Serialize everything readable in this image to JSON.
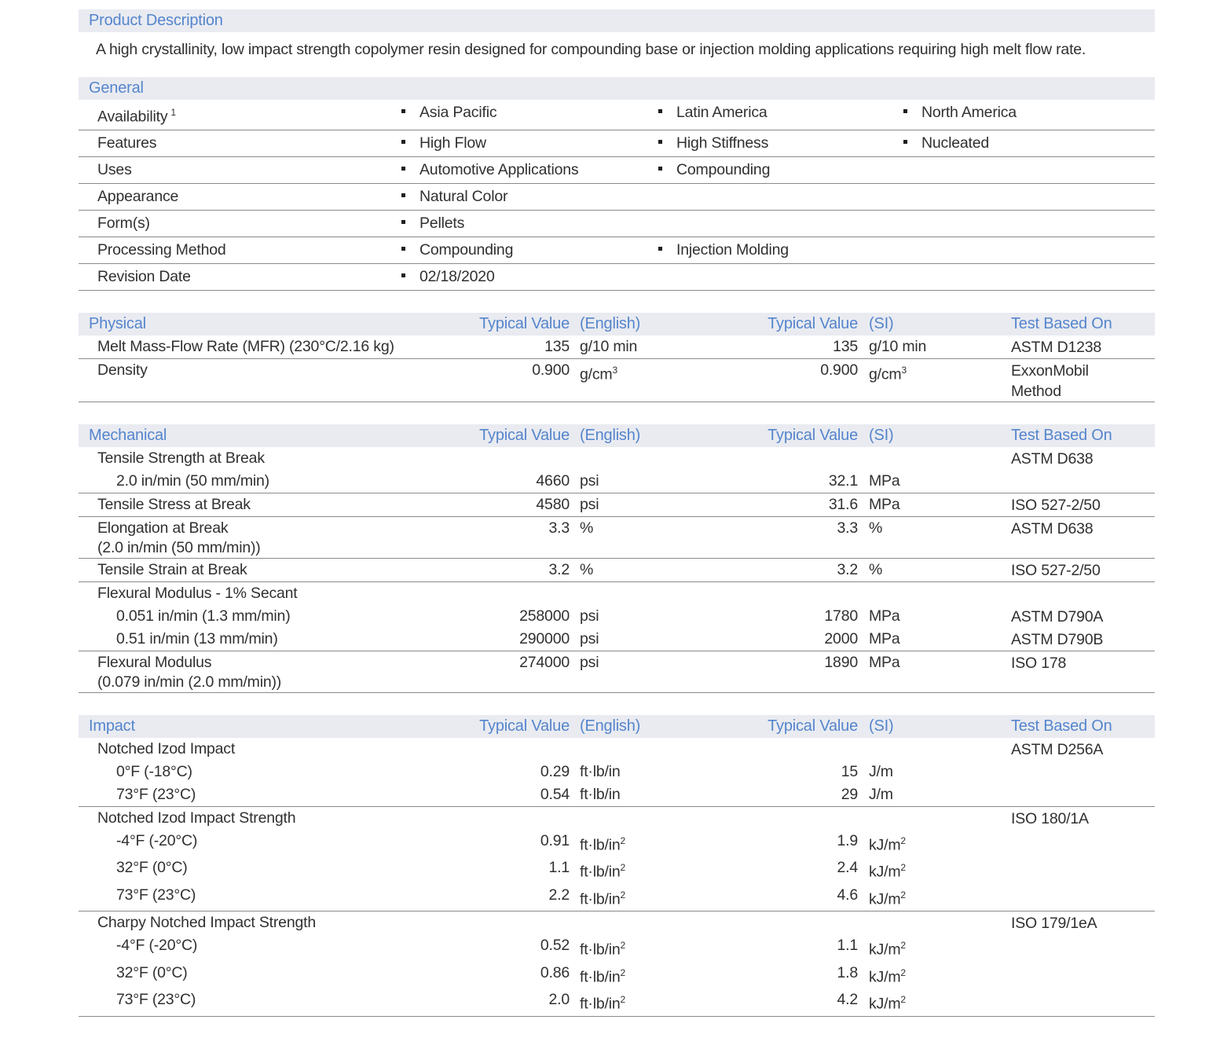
{
  "page": {
    "background": "#ffffff",
    "section_header_bg": "#e9ebf1",
    "section_header_text": "#5585cc",
    "body_text": "#303030",
    "divider_color": "#8a8a8a",
    "bullet_icon": "square-bullet"
  },
  "product_description": {
    "title": "Product Description",
    "body": "A high crystallinity, low impact strength copolymer resin designed for compounding base or injection molding applications requiring high melt flow rate."
  },
  "general": {
    "title": "General",
    "rows": [
      {
        "label": "Availability",
        "sup": "1",
        "values": [
          "Asia Pacific",
          "Latin America",
          "North America"
        ]
      },
      {
        "label": "Features",
        "values": [
          "High Flow",
          "High Stiffness",
          "Nucleated"
        ]
      },
      {
        "label": "Uses",
        "values": [
          "Automotive Applications",
          "Compounding"
        ]
      },
      {
        "label": "Appearance",
        "values": [
          "Natural Color"
        ]
      },
      {
        "label": "Form(s)",
        "values": [
          "Pellets"
        ]
      },
      {
        "label": "Processing Method",
        "values": [
          "Compounding",
          "Injection Molding"
        ]
      },
      {
        "label": "Revision Date",
        "values": [
          "02/18/2020"
        ]
      }
    ]
  },
  "columns": {
    "typical_value": "Typical Value",
    "english": "(English)",
    "si": "(SI)",
    "test_based_on": "Test Based On"
  },
  "property_tables": [
    {
      "title": "Physical",
      "rows": [
        {
          "label": "Melt Mass-Flow Rate (MFR) (230°C/2.16 kg)",
          "en": "135",
          "en_unit": "g/10 min",
          "si": "135",
          "si_unit": "g/10 min",
          "test": "ASTM D1238",
          "divider": true
        },
        {
          "label": "Density",
          "en": "0.900",
          "en_unit": "g/cm^3",
          "si": "0.900",
          "si_unit": "g/cm^3",
          "test": "ExxonMobil Method",
          "divider": true
        }
      ]
    },
    {
      "title": "Mechanical",
      "rows": [
        {
          "label": "Tensile Strength at Break",
          "test": "ASTM D638"
        },
        {
          "label": "2.0 in/min (50 mm/min)",
          "indent": true,
          "en": "4660",
          "en_unit": "psi",
          "si": "32.1",
          "si_unit": "MPa",
          "divider": true
        },
        {
          "label": "Tensile Stress at Break",
          "en": "4580",
          "en_unit": "psi",
          "si": "31.6",
          "si_unit": "MPa",
          "test": "ISO 527-2/50",
          "divider": true
        },
        {
          "label": "Elongation at Break",
          "label2": "(2.0 in/min (50 mm/min))",
          "en": "3.3",
          "en_unit": "%",
          "si": "3.3",
          "si_unit": "%",
          "test": "ASTM D638",
          "divider": true
        },
        {
          "label": "Tensile Strain at Break",
          "en": "3.2",
          "en_unit": "%",
          "si": "3.2",
          "si_unit": "%",
          "test": "ISO 527-2/50",
          "divider": true
        },
        {
          "label": "Flexural Modulus - 1% Secant"
        },
        {
          "label": "0.051 in/min (1.3 mm/min)",
          "indent": true,
          "en": "258000",
          "en_unit": "psi",
          "si": "1780",
          "si_unit": "MPa",
          "test": "ASTM D790A"
        },
        {
          "label": "0.51 in/min (13 mm/min)",
          "indent": true,
          "en": "290000",
          "en_unit": "psi",
          "si": "2000",
          "si_unit": "MPa",
          "test": "ASTM D790B",
          "divider": true
        },
        {
          "label": "Flexural Modulus",
          "label2": "(0.079 in/min (2.0 mm/min))",
          "en": "274000",
          "en_unit": "psi",
          "si": "1890",
          "si_unit": "MPa",
          "test": "ISO 178",
          "divider": true
        }
      ]
    },
    {
      "title": "Impact",
      "rows": [
        {
          "label": "Notched Izod Impact",
          "test": "ASTM D256A"
        },
        {
          "label": "0°F (-18°C)",
          "indent": true,
          "en": "0.29",
          "en_unit": "ft·lb/in",
          "si": "15",
          "si_unit": "J/m"
        },
        {
          "label": "73°F (23°C)",
          "indent": true,
          "en": "0.54",
          "en_unit": "ft·lb/in",
          "si": "29",
          "si_unit": "J/m",
          "divider": true
        },
        {
          "label": "Notched Izod Impact Strength",
          "test": "ISO 180/1A"
        },
        {
          "label": "-4°F (-20°C)",
          "indent": true,
          "en": "0.91",
          "en_unit": "ft·lb/in^2",
          "si": "1.9",
          "si_unit": "kJ/m^2"
        },
        {
          "label": "32°F (0°C)",
          "indent": true,
          "en": "1.1",
          "en_unit": "ft·lb/in^2",
          "si": "2.4",
          "si_unit": "kJ/m^2"
        },
        {
          "label": "73°F (23°C)",
          "indent": true,
          "en": "2.2",
          "en_unit": "ft·lb/in^2",
          "si": "4.6",
          "si_unit": "kJ/m^2",
          "divider": true
        },
        {
          "label": "Charpy Notched Impact Strength",
          "test": "ISO 179/1eA"
        },
        {
          "label": "-4°F (-20°C)",
          "indent": true,
          "en": "0.52",
          "en_unit": "ft·lb/in^2",
          "si": "1.1",
          "si_unit": "kJ/m^2"
        },
        {
          "label": "32°F (0°C)",
          "indent": true,
          "en": "0.86",
          "en_unit": "ft·lb/in^2",
          "si": "1.8",
          "si_unit": "kJ/m^2"
        },
        {
          "label": "73°F (23°C)",
          "indent": true,
          "en": "2.0",
          "en_unit": "ft·lb/in^2",
          "si": "4.2",
          "si_unit": "kJ/m^2",
          "divider": true
        }
      ]
    }
  ]
}
